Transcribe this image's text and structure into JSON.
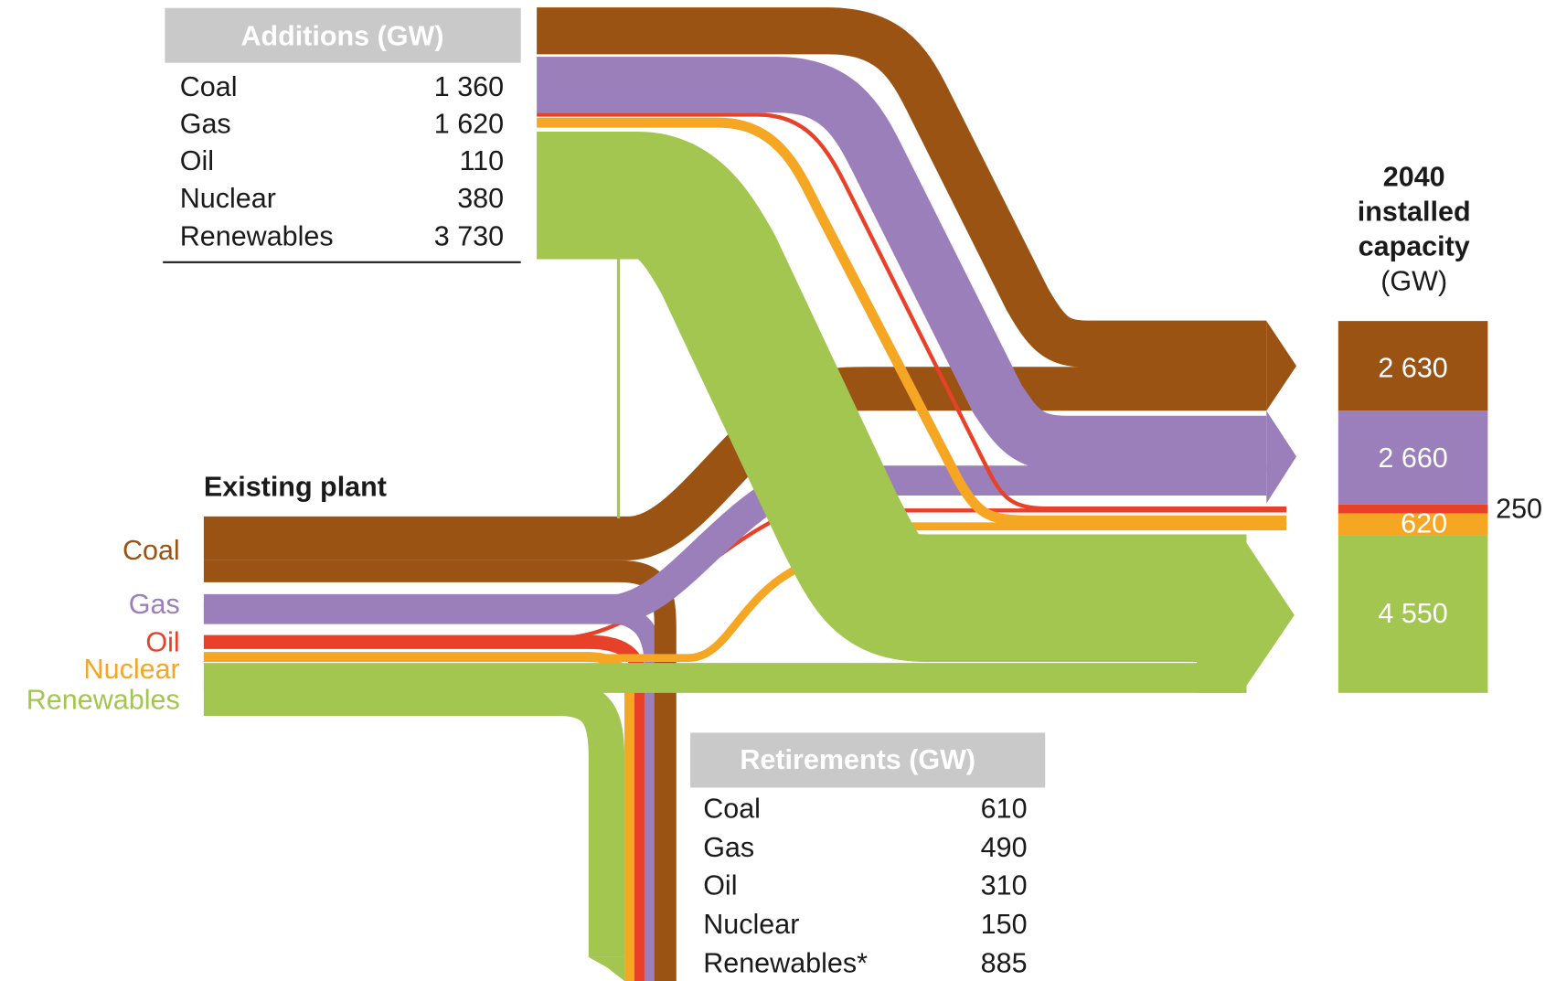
{
  "additions": {
    "title": "Additions (GW)",
    "rows": [
      [
        "Coal",
        "1 360"
      ],
      [
        "Gas",
        "1 620"
      ],
      [
        "Oil",
        "110"
      ],
      [
        "Nuclear",
        "380"
      ],
      [
        "Renewables",
        "3 730"
      ]
    ]
  },
  "existing": {
    "title": "Existing plant",
    "labels": [
      "Coal",
      "Gas",
      "Oil",
      "Nuclear",
      "Renewables"
    ]
  },
  "capacity": {
    "title": [
      "2040",
      "installed",
      "capacity",
      "(GW)"
    ],
    "values": [
      "2 630",
      "2 660",
      "250",
      "620",
      "4 550"
    ]
  },
  "retirements": {
    "title": "Retirements (GW)",
    "rows": [
      [
        "Coal",
        "610"
      ],
      [
        "Gas",
        "490"
      ],
      [
        "Oil",
        "310"
      ],
      [
        "Nuclear",
        "150"
      ],
      [
        "Renewables*",
        "885"
      ]
    ]
  }
}
